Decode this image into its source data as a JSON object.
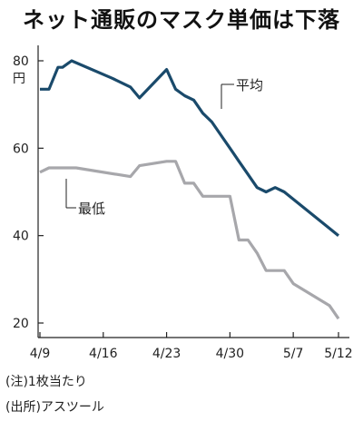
{
  "header": {
    "title": "ネット通販のマスク単価は下落"
  },
  "chart_data": {
    "type": "line",
    "title": "ネット通販のマスク単価は下落",
    "ylabel": "円",
    "ylim": [
      20,
      80
    ],
    "yticks": [
      20,
      40,
      60,
      80
    ],
    "xticks": [
      {
        "label": "4/9",
        "day": 9
      },
      {
        "label": "4/16",
        "day": 16
      },
      {
        "label": "4/23",
        "day": 23
      },
      {
        "label": "4/30",
        "day": 30
      },
      {
        "label": "5/7",
        "day": 37
      },
      {
        "label": "5/12",
        "day": 42
      }
    ],
    "xlim_day": [
      9,
      42
    ],
    "grid": false,
    "series": [
      {
        "name": "平均",
        "color": "#1a4a6b",
        "points": [
          [
            9,
            73.5
          ],
          [
            10,
            73.5
          ],
          [
            11,
            78.5
          ],
          [
            11.5,
            78.5
          ],
          [
            12.5,
            80
          ],
          [
            17,
            76
          ],
          [
            19,
            74
          ],
          [
            20,
            71.5
          ],
          [
            23,
            78
          ],
          [
            24,
            73.5
          ],
          [
            25,
            72
          ],
          [
            26,
            71
          ],
          [
            27,
            68
          ],
          [
            28,
            66
          ],
          [
            29,
            63
          ],
          [
            30,
            60
          ],
          [
            31,
            57
          ],
          [
            32,
            54
          ],
          [
            33,
            51
          ],
          [
            34,
            50
          ],
          [
            35,
            51
          ],
          [
            36,
            50
          ],
          [
            42,
            40
          ]
        ]
      },
      {
        "name": "最低",
        "color": "#a7a7ab",
        "points": [
          [
            9,
            54.5
          ],
          [
            10,
            55.5
          ],
          [
            13,
            55.5
          ],
          [
            19,
            53.5
          ],
          [
            20,
            56
          ],
          [
            23,
            57
          ],
          [
            24,
            57
          ],
          [
            25,
            52
          ],
          [
            26,
            52
          ],
          [
            27,
            49
          ],
          [
            29,
            49
          ],
          [
            30,
            49
          ],
          [
            31,
            39
          ],
          [
            32,
            39
          ],
          [
            33,
            36
          ],
          [
            34,
            32
          ],
          [
            35,
            32
          ],
          [
            36,
            32
          ],
          [
            37,
            29
          ],
          [
            41,
            24
          ],
          [
            42,
            21
          ]
        ]
      }
    ]
  },
  "notes": [
    "(注)1枚当たり",
    "(出所)アスツール"
  ]
}
